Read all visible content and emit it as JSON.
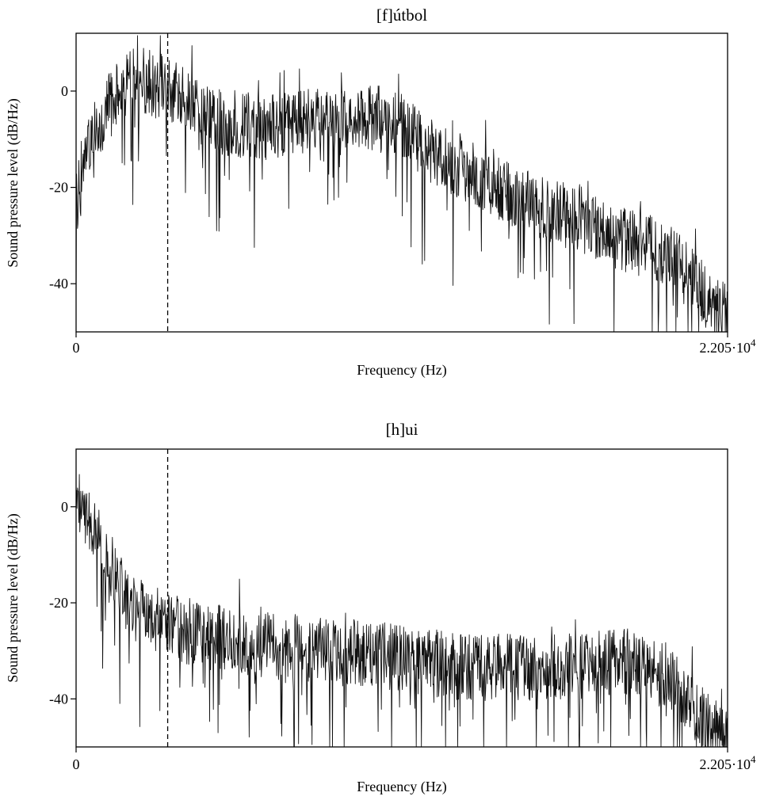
{
  "chart_data": [
    {
      "type": "line",
      "title": "[f]útbol",
      "xlabel": "Frequency (Hz)",
      "ylabel": "Sound pressure level (dB/Hz)",
      "xlim": [
        0,
        22050
      ],
      "ylim": [
        -50,
        12
      ],
      "x_tick_labels": [
        "0",
        "2.205·10^4"
      ],
      "y_ticks": [
        0,
        -20,
        -40
      ],
      "y_tick_labels": [
        "0",
        "-20",
        "-40"
      ],
      "grid": false,
      "vertical_dashed_line_x": 3100,
      "series": [
        {
          "x": [
            0,
            500,
            1000,
            1500,
            2000,
            2500,
            3000,
            3500,
            4000,
            5000,
            6000,
            7000,
            8000,
            9000,
            10000,
            11000,
            12000,
            13000,
            14000,
            15000,
            16000,
            17000,
            18000,
            19000,
            20000,
            21000,
            22050
          ],
          "y": [
            -22,
            -8,
            -3,
            2,
            4,
            3,
            2,
            0,
            -3,
            -5,
            -6,
            -6,
            -5,
            -5,
            -4,
            -6,
            -11,
            -14,
            -17,
            -21,
            -23,
            -25,
            -28,
            -30,
            -32,
            -39,
            -46
          ]
        }
      ]
    },
    {
      "type": "line",
      "title": "[h]ui",
      "xlabel": "Frequency (Hz)",
      "ylabel": "Sound pressure level (dB/Hz)",
      "xlim": [
        0,
        22050
      ],
      "ylim": [
        -50,
        12
      ],
      "x_tick_labels": [
        "0",
        "2.205·10^4"
      ],
      "y_ticks": [
        0,
        -20,
        -40
      ],
      "y_tick_labels": [
        "0",
        "-20",
        "-40"
      ],
      "grid": false,
      "vertical_dashed_line_x": 3100,
      "series": [
        {
          "x": [
            0,
            300,
            600,
            1000,
            1500,
            2000,
            3000,
            4000,
            5000,
            6000,
            7000,
            8000,
            9000,
            10000,
            11000,
            12000,
            13000,
            14000,
            15000,
            16000,
            17000,
            18000,
            19000,
            20000,
            21000,
            22050
          ],
          "y": [
            2,
            0,
            -3,
            -8,
            -16,
            -20,
            -23,
            -25,
            -26,
            -27,
            -28,
            -28,
            -29,
            -29,
            -30,
            -31,
            -32,
            -32,
            -32,
            -32,
            -32,
            -31,
            -31,
            -34,
            -41,
            -47
          ]
        }
      ]
    }
  ]
}
